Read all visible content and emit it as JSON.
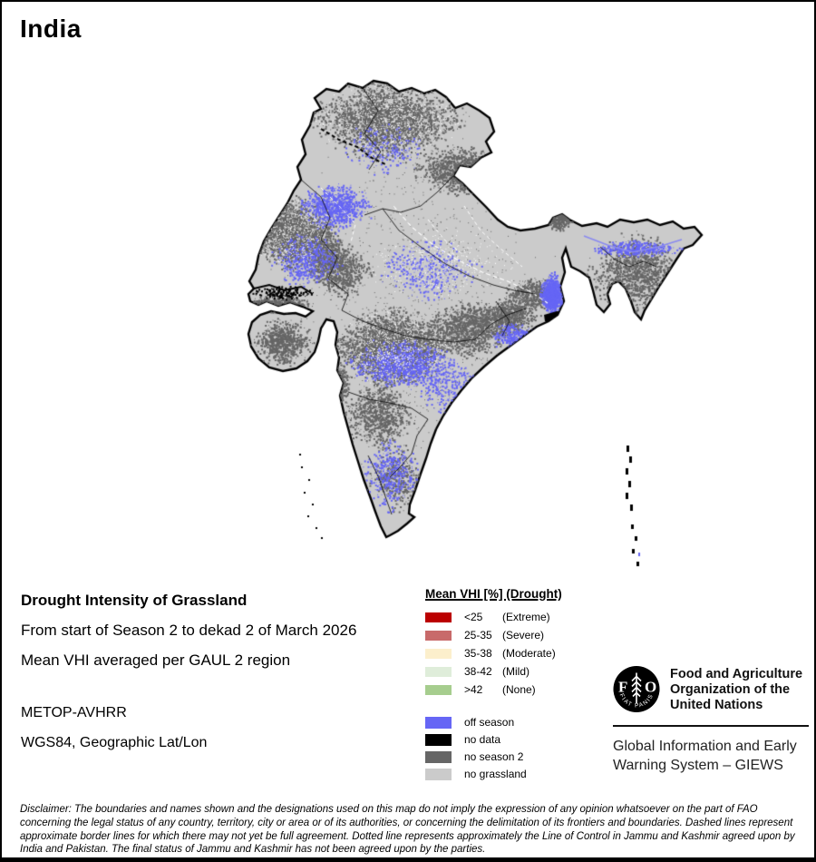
{
  "page": {
    "title": "India"
  },
  "info": {
    "title": "Drought Intensity of Grassland",
    "period": "From start of Season 2 to dekad 2 of March 2026",
    "aggregation": "Mean VHI averaged per GAUL 2 region",
    "sensor": "METOP-AVHRR",
    "projection": "WGS84, Geographic Lat/Lon"
  },
  "legend": {
    "title": "Mean VHI [%] (Drought)",
    "classes": [
      {
        "value": "<25",
        "label": "(Extreme)",
        "color": "#bb0000"
      },
      {
        "value": "25-35",
        "label": "(Severe)",
        "color": "#c86a6a"
      },
      {
        "value": "35-38",
        "label": "(Moderate)",
        "color": "#fcefcc"
      },
      {
        "value": "38-42",
        "label": "(Mild)",
        "color": "#dfedda"
      },
      {
        "value": ">42",
        "label": "(None)",
        "color": "#a6cd8e"
      }
    ],
    "masks": [
      {
        "label": "off season",
        "color": "#6666f5"
      },
      {
        "label": "no data",
        "color": "#000000"
      },
      {
        "label": "no season 2",
        "color": "#666666"
      },
      {
        "label": "no grassland",
        "color": "#cbcbcb"
      }
    ]
  },
  "branding": {
    "logo_text": "FAO",
    "logo_motto": "FIAT PANIS",
    "org_line1": "Food and Agriculture",
    "org_line2": "Organization of the",
    "org_line3": "United Nations",
    "giews_line1": "Global Information and Early",
    "giews_line2": "Warning System – GIEWS"
  },
  "disclaimer": "Disclaimer: The boundaries and names shown and the designations used on this map do not imply the expression of any opinion whatsoever on the part of FAO concerning the legal status of any country, territory, city or area or of its authorities, or concerning the delimitation of its frontiers and boundaries. Dashed lines represent approximate border lines for which there may not yet be full agreement. Dotted line represents approximately the Line of Control in Jammu and Kashmir agreed upon by India and Pakistan. The final status of Jammu and Kashmir has not been agreed upon by the parties.",
  "map_colors": {
    "land": "#cbcbcb",
    "no_season2": "#666666",
    "off_season": "#6666f5",
    "no_data": "#000000",
    "river": "#ffffff"
  }
}
